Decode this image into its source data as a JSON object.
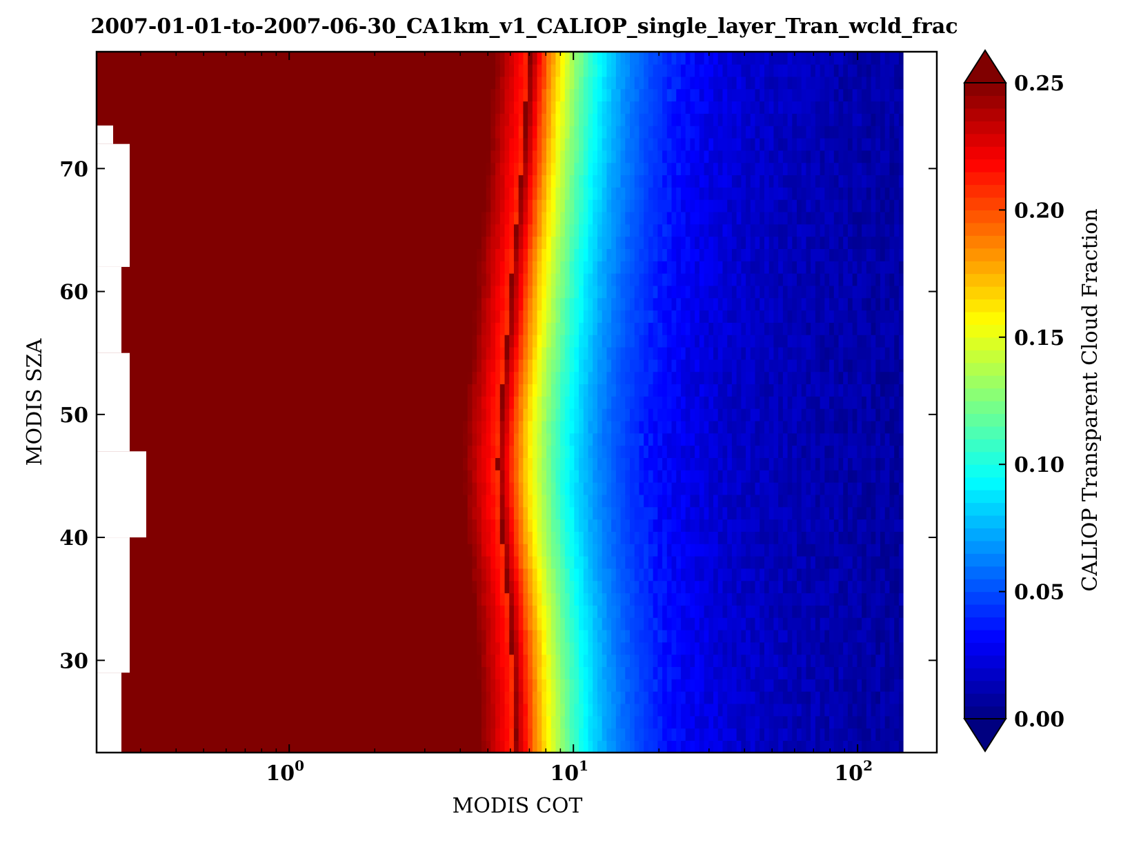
{
  "chart_data": {
    "type": "heatmap",
    "title": "2007-01-01-to-2007-06-30_CA1km_v1_CALIOP_single_layer_Tran_wcld_frac",
    "xlabel": "MODIS COT",
    "ylabel": "MODIS SZA",
    "x_scale": "log",
    "xlim": [
      0.21,
      190
    ],
    "ylim": [
      22.5,
      79.5
    ],
    "x_ticks": [
      {
        "value": 1,
        "base": "10",
        "exp": "0"
      },
      {
        "value": 10,
        "base": "10",
        "exp": "1"
      },
      {
        "value": 100,
        "base": "10",
        "exp": "2"
      }
    ],
    "y_ticks": [
      30,
      40,
      50,
      60,
      70
    ],
    "y_tick_labels": [
      "30",
      "40",
      "50",
      "60",
      "70"
    ],
    "colorbar": {
      "label": "CALIOP Transparent Cloud Fraction",
      "range": [
        0.0,
        0.25
      ],
      "ticks": [
        0.0,
        0.05,
        0.1,
        0.15,
        0.2,
        0.25
      ],
      "tick_labels": [
        "0.00",
        "0.05",
        "0.10",
        "0.15",
        "0.20",
        "0.25"
      ],
      "colormap": "jet",
      "extend": "both"
    },
    "description_values": {
      "x_data_max": 145,
      "saturated_region_cot_upper": 4.5,
      "transition_cot_range": [
        4.5,
        15
      ],
      "low_fraction_cot_range": [
        20,
        145
      ]
    }
  },
  "colors": {
    "frame": "#000000",
    "background": "#ffffff",
    "saturated": "#800000"
  }
}
